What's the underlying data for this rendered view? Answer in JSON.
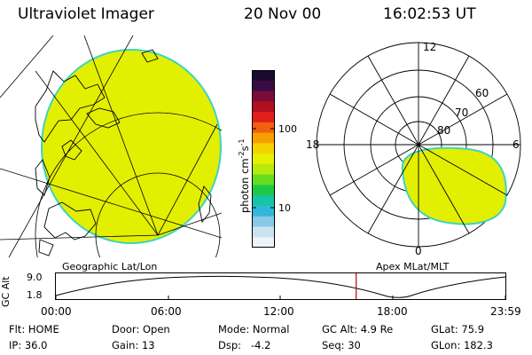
{
  "header": {
    "instrument": "Ultraviolet Imager",
    "date": "20 Nov 00",
    "time": "16:02:53 UT"
  },
  "colorbar": {
    "label_main": "photon cm",
    "label_exp1": "-2",
    "label_mid": "s",
    "label_exp2": "-1",
    "tick_high": "100",
    "tick_low": "10",
    "colors": [
      "#1a0a2e",
      "#3a0c45",
      "#7a0c3a",
      "#b0101e",
      "#e0201a",
      "#f06010",
      "#f5a000",
      "#f3d200",
      "#e6f000",
      "#b6ea10",
      "#66dc20",
      "#20c84a",
      "#18c4a8",
      "#30b8dc",
      "#8ac8e8",
      "#c8e4ee",
      "#eef4f6"
    ]
  },
  "polar": {
    "mlt_labels": {
      "top": "12",
      "left": "18",
      "right": "6",
      "bottom": "0"
    },
    "lat_labels": [
      "60",
      "70",
      "80"
    ]
  },
  "altitude_plot": {
    "y_label": "GC Alt",
    "y_ticks": [
      "9.0",
      "1.8"
    ],
    "left_caption": "Geographic Lat/Lon",
    "right_caption": "Apex MLat/MLT",
    "x_ticks": [
      "00:00",
      "06:00",
      "12:00",
      "18:00",
      "23:59"
    ],
    "current_time_fraction": 0.668
  },
  "info_rows": [
    [
      {
        "label": "Flt:",
        "value": "HOME"
      },
      {
        "label": "Door:",
        "value": "Open"
      },
      {
        "label": "Mode:",
        "value": "Normal"
      },
      {
        "label": "GC Alt:",
        "value": "4.9 Re"
      },
      {
        "label": "GLat:",
        "value": "75.9"
      }
    ],
    [
      {
        "label": "IP:",
        "value": "36.0"
      },
      {
        "label": "Gain:",
        "value": "13"
      },
      {
        "label": "Dsp:",
        "value": "-4.2"
      },
      {
        "label": "Seq:",
        "value": "30"
      },
      {
        "label": "GLon:",
        "value": "182.3"
      }
    ]
  ],
  "colors": {
    "image_fill": "#e3ef00",
    "image_edge": "#3fd3c0",
    "cursor": "#c00000"
  }
}
